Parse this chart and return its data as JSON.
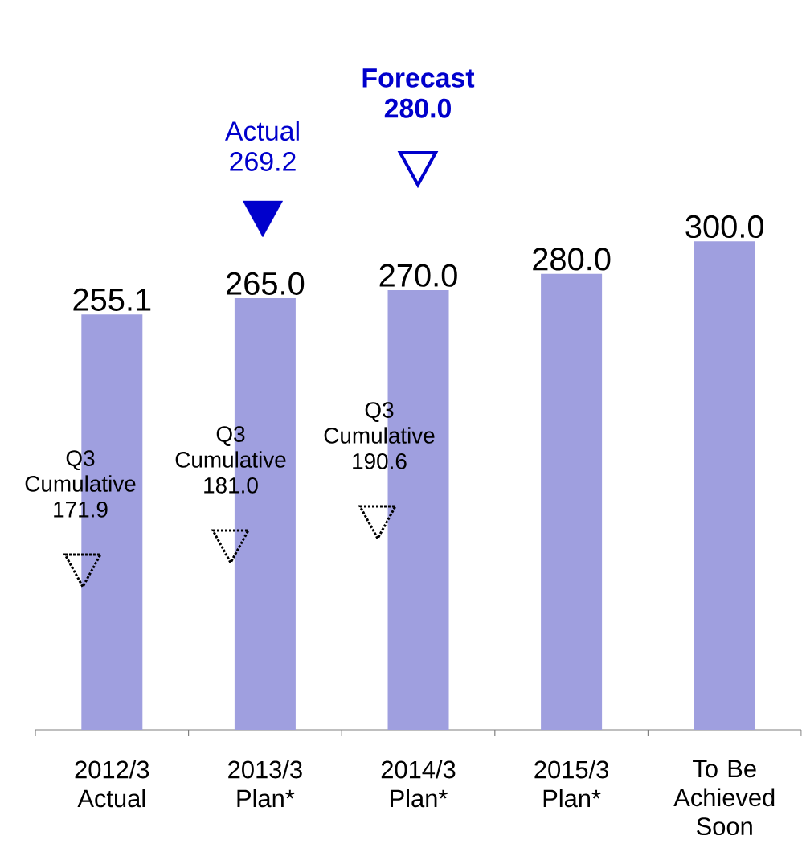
{
  "chart_data": {
    "type": "bar",
    "categories": [
      "2012/3 Actual",
      "2013/3 Plan*",
      "2014/3 Plan*",
      "2015/3 Plan*",
      "To Be Achieved Soon"
    ],
    "values": [
      255.1,
      265.0,
      270.0,
      280.0,
      300.0
    ],
    "value_labels": [
      "255.1",
      "265.0",
      "270.0",
      "280.0",
      "300.0"
    ],
    "color": "#9f9fdf",
    "tick_labels": "x",
    "annotations": [
      "Q3 Cumulative 171.9",
      "Q3 Cumulative 181.0",
      "Q3 Cumulative 190.6",
      "Actual 269.2",
      "Forecast 280.0"
    ]
  }
}
